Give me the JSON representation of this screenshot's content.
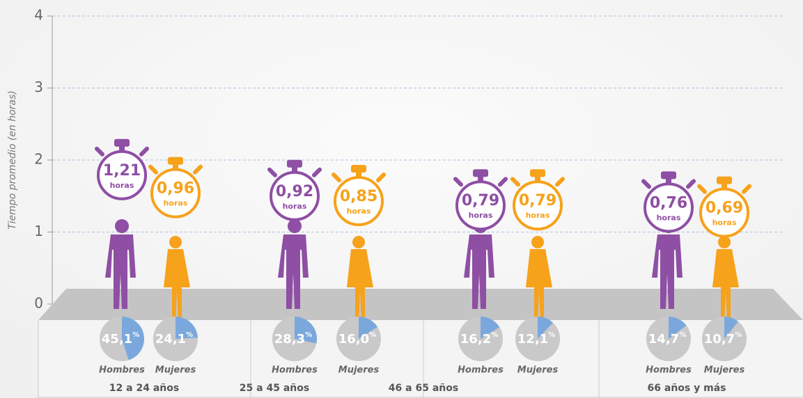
{
  "chart_data": {
    "type": "pictogram",
    "ylabel": "Tiempo promedio (en horas)",
    "ylim": [
      0,
      4
    ],
    "yticks": [
      0,
      1,
      2,
      3,
      4
    ],
    "grid": true,
    "categories": [
      "12 a 24 años",
      "25 a 45 años",
      "46 a 65 años",
      "66 años y más"
    ],
    "unit_label": "horas",
    "share_unit": "%",
    "share_color": "#7aa8dc",
    "share_rest_color": "#c9c9c9",
    "series": [
      {
        "name": "Hombres",
        "color": "#8e4fa4",
        "values": [
          1.21,
          0.92,
          0.79,
          0.76
        ],
        "value_labels": [
          "1,21",
          "0,92",
          "0,79",
          "0,76"
        ],
        "shares": [
          45.1,
          28.3,
          16.2,
          14.7
        ],
        "share_labels": [
          "45,1",
          "28,3",
          "16,2",
          "14,7"
        ]
      },
      {
        "name": "Mujeres",
        "color": "#f6a21b",
        "values": [
          0.96,
          0.85,
          0.79,
          0.69
        ],
        "value_labels": [
          "0,96",
          "0,85",
          "0,79",
          "0,69"
        ],
        "shares": [
          24.1,
          16.0,
          12.1,
          10.7
        ],
        "share_labels": [
          "24,1",
          "16,0",
          "12,1",
          "10,7"
        ]
      }
    ]
  }
}
